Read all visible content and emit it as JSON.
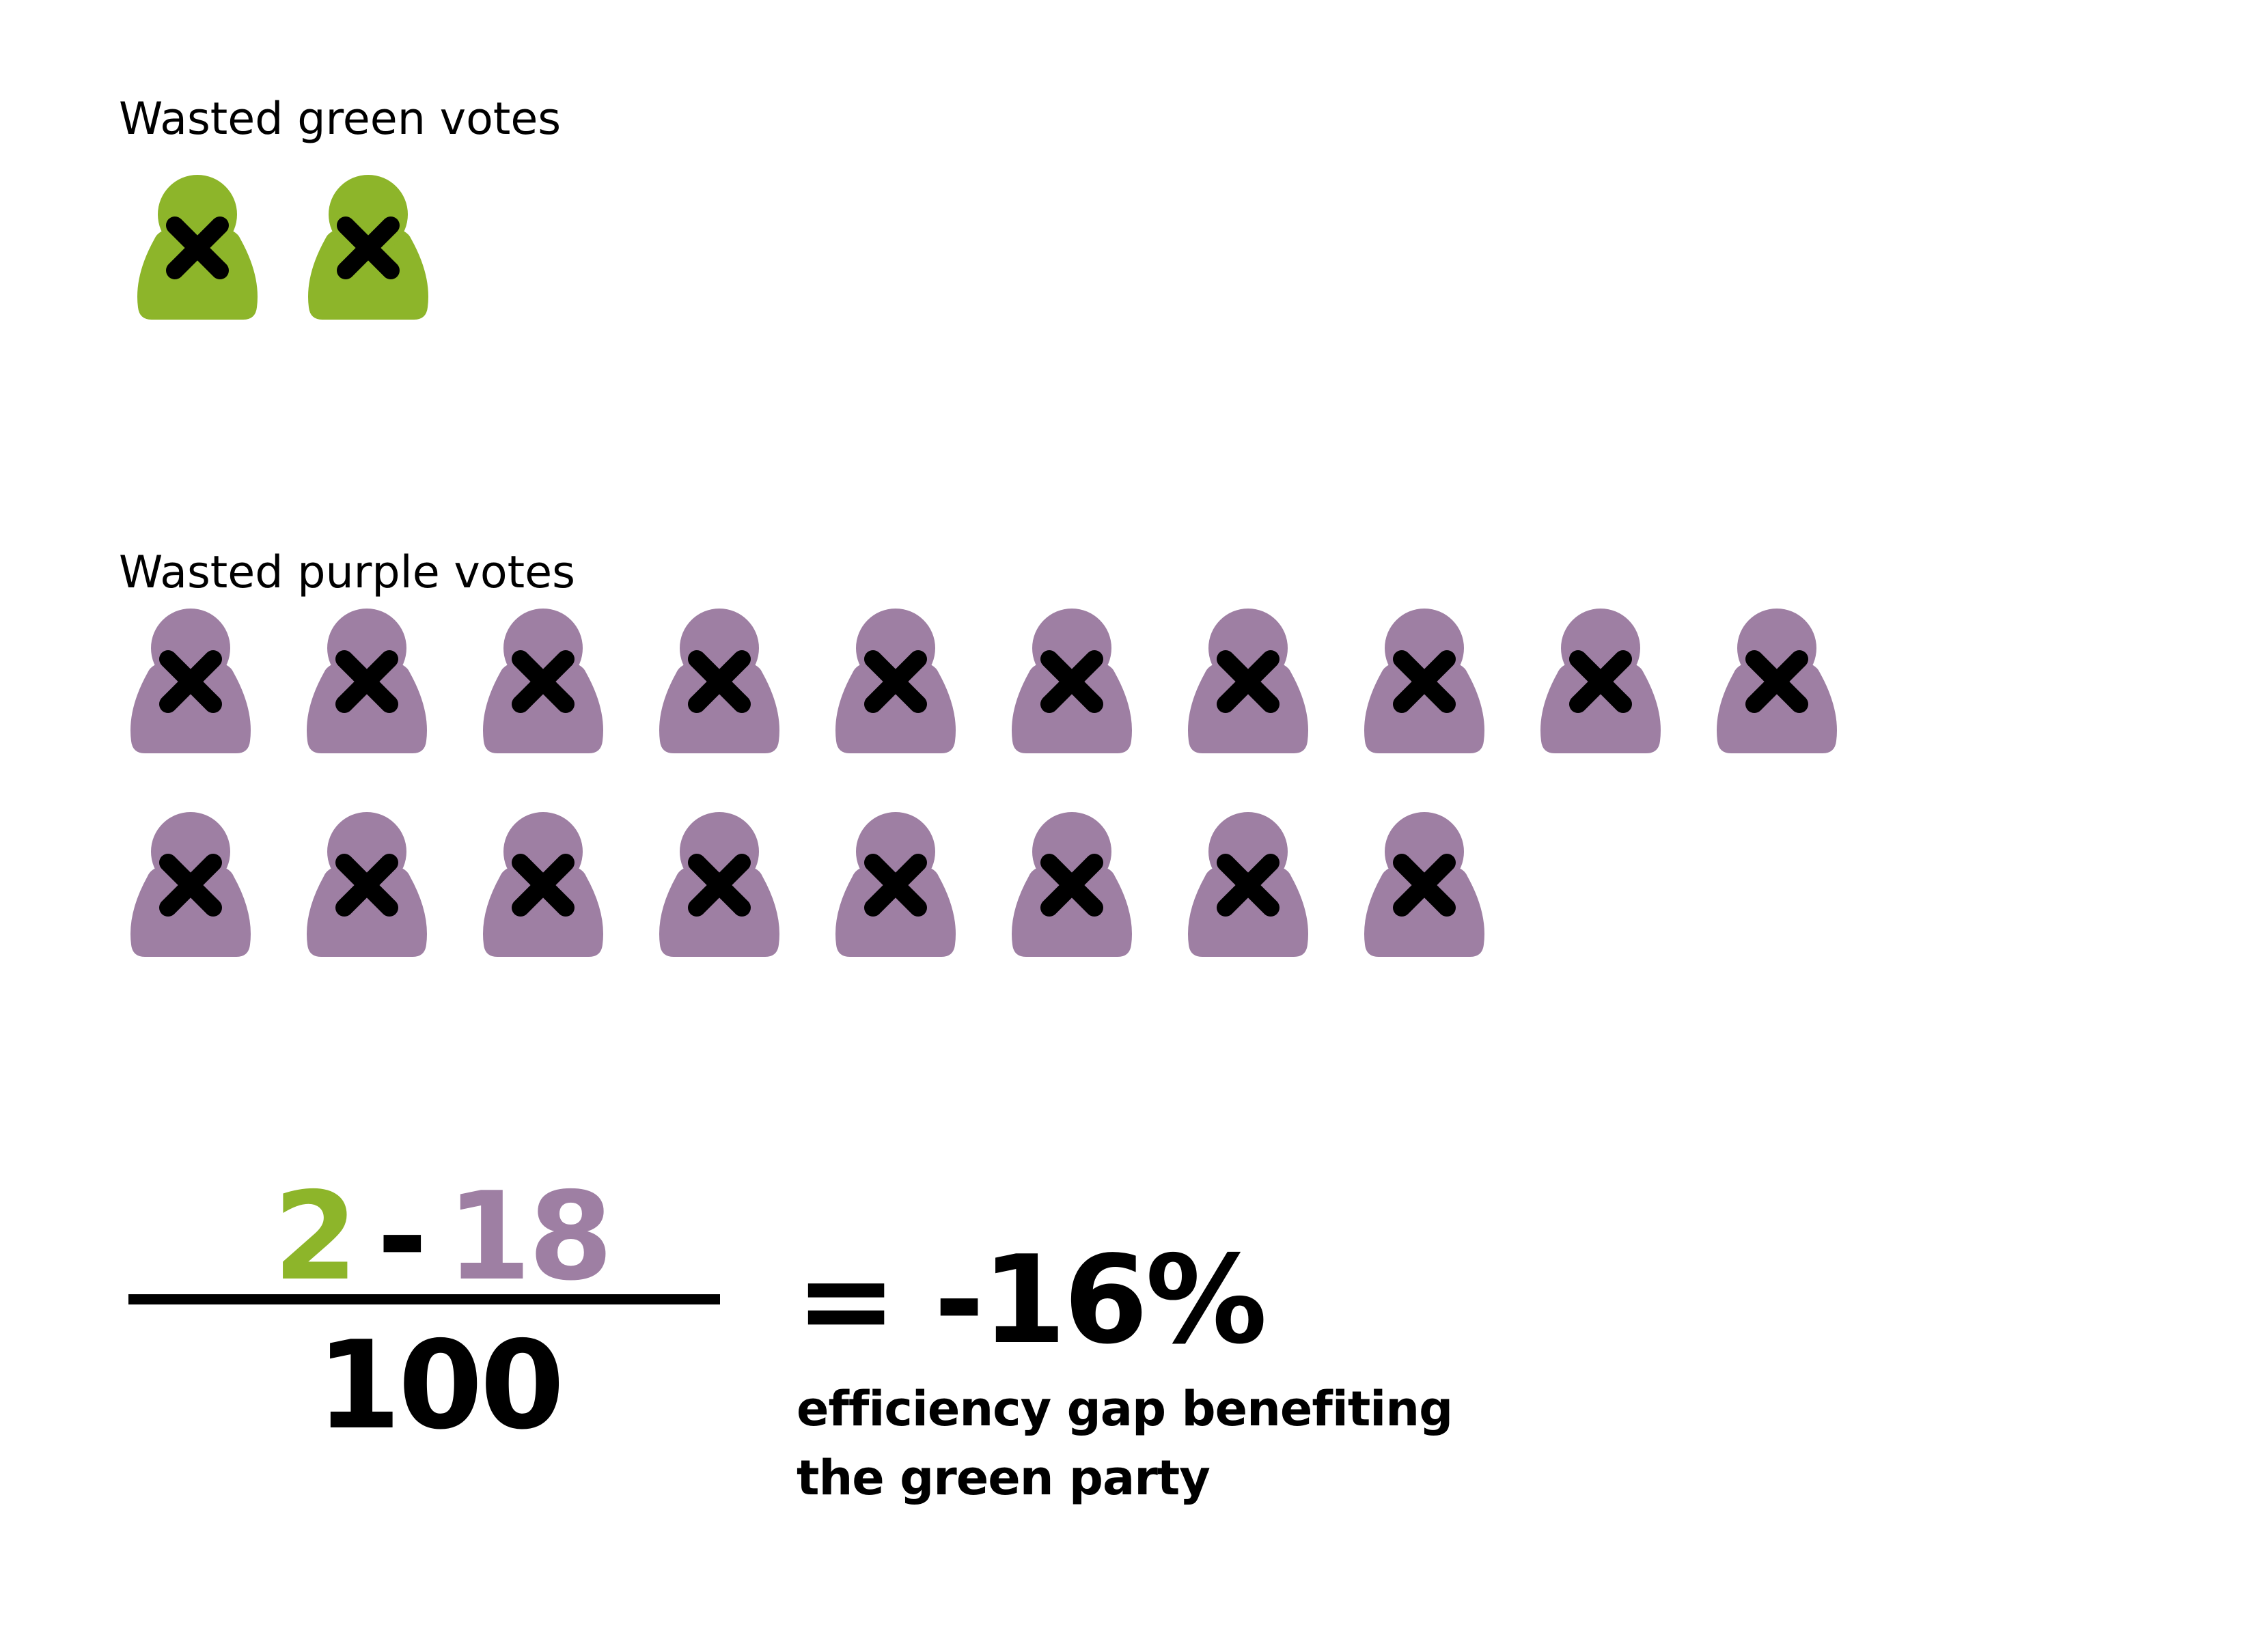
{
  "colors": {
    "green": "#8db52a",
    "purple": "#9e7fa3",
    "mark": "#000000"
  },
  "sections": {
    "green": {
      "title": "Wasted green votes",
      "count": 2,
      "icon": "person-crossed-out-icon"
    },
    "purple": {
      "title": "Wasted purple votes",
      "count": 18,
      "icon": "person-crossed-out-icon"
    }
  },
  "formula": {
    "green_value": "2",
    "operator": "-",
    "purple_value": "18",
    "denominator": "100",
    "result": "= -16%",
    "caption_line1": "efficiency gap benefiting",
    "caption_line2": "the green party"
  }
}
